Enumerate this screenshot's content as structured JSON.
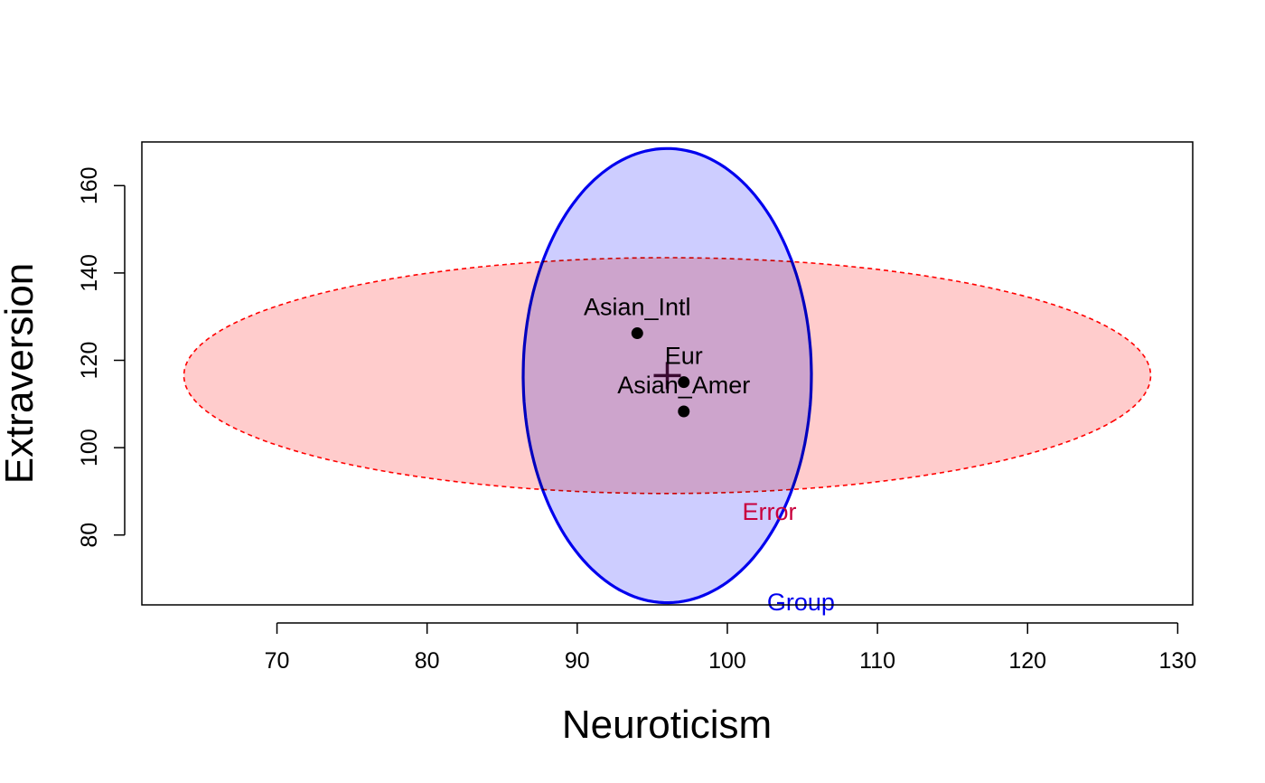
{
  "chart_data": {
    "type": "scatter",
    "title": "",
    "xlabel": "Neuroticism",
    "ylabel": "Extraversion",
    "xlim": [
      61,
      131
    ],
    "ylim": [
      64,
      170
    ],
    "xticks": [
      70,
      80,
      90,
      100,
      110,
      120,
      130
    ],
    "yticks": [
      80,
      100,
      120,
      140,
      160
    ],
    "grid": false,
    "points": [
      {
        "label": "Asian_Intl",
        "x": 94.0,
        "y": 126.2
      },
      {
        "label": "Eur",
        "x": 97.1,
        "y": 115.0
      },
      {
        "label": "Asian_Amer",
        "x": 97.1,
        "y": 108.3
      }
    ],
    "grand_mean": {
      "x": 96.0,
      "y": 116.5
    },
    "ellipses": [
      {
        "name": "Error",
        "center": [
          96.0,
          116.5
        ],
        "semi_axis_x": 32.2,
        "semi_axis_y": 27.0,
        "tilt": -0.4,
        "fill": "#ffcccc",
        "stroke": "#ff0000",
        "dashed": true,
        "label_pos": [
          102.8,
          83.5
        ],
        "label_color": "#c8003c"
      },
      {
        "name": "Group",
        "center": [
          96.0,
          116.5
        ],
        "semi_axis_x": 9.6,
        "semi_axis_y": 52.0,
        "tilt": 0.987,
        "fill": "#ccccff",
        "stroke": "#0000ee",
        "dashed": false,
        "label_pos": [
          104.9,
          62.8
        ],
        "label_color": "#0000ee"
      }
    ]
  }
}
